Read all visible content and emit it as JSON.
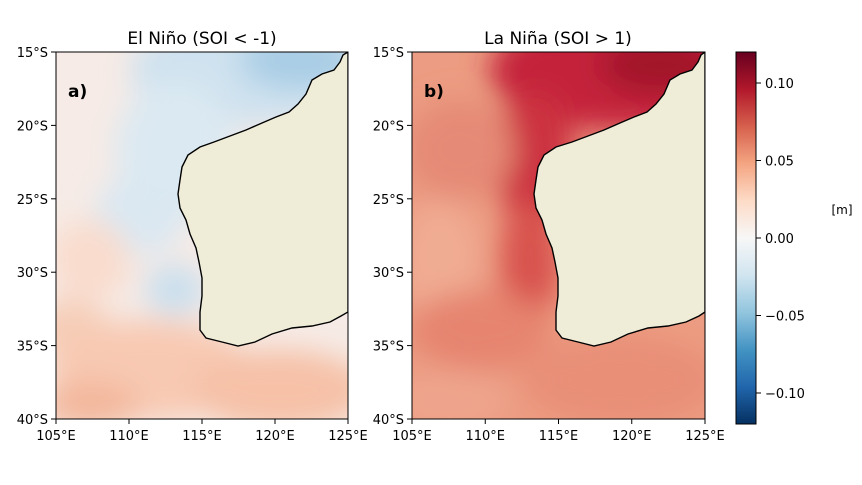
{
  "chart_data": [
    {
      "type": "heatmap",
      "title": "El Niño (SOI < -1)",
      "panel_label": "a)",
      "x_ticks": [
        "105°E",
        "110°E",
        "115°E",
        "120°E",
        "125°E"
      ],
      "y_ticks": [
        "15°S",
        "20°S",
        "25°S",
        "30°S",
        "35°S",
        "40°S"
      ],
      "xlim": [
        105,
        125
      ],
      "ylim": [
        -40,
        -15
      ],
      "land_color": "#efecd8",
      "field_summary": {
        "offshore_north": -0.02,
        "near_coast_west": -0.03,
        "north_west_shelf": -0.04,
        "south": 0.04,
        "far_west": 0.02
      }
    },
    {
      "type": "heatmap",
      "title": "La Niña (SOI > 1)",
      "panel_label": "b)",
      "x_ticks": [
        "105°E",
        "110°E",
        "115°E",
        "120°E",
        "125°E"
      ],
      "y_ticks": [
        "15°S",
        "20°S",
        "25°S",
        "30°S",
        "35°S",
        "40°S"
      ],
      "xlim": [
        105,
        125
      ],
      "ylim": [
        -40,
        -15
      ],
      "land_color": "#efecd8",
      "field_summary": {
        "offshore_north": 0.08,
        "north_west_shelf": 0.11,
        "near_coast_west": 0.09,
        "south": 0.05,
        "far_west": 0.05
      }
    }
  ],
  "colorbar": {
    "label": "[m]",
    "range": [
      -0.12,
      0.12
    ],
    "ticks": [
      "0.10",
      "0.05",
      "0.00",
      "−0.05",
      "−0.10"
    ],
    "tick_values": [
      0.1,
      0.05,
      0.0,
      -0.05,
      -0.1
    ],
    "colormap": [
      "#053061",
      "#2166ac",
      "#4393c3",
      "#92c5de",
      "#d1e5f0",
      "#f7f7f7",
      "#fddbc7",
      "#f4a582",
      "#d6604d",
      "#b2182b",
      "#67001f"
    ]
  }
}
